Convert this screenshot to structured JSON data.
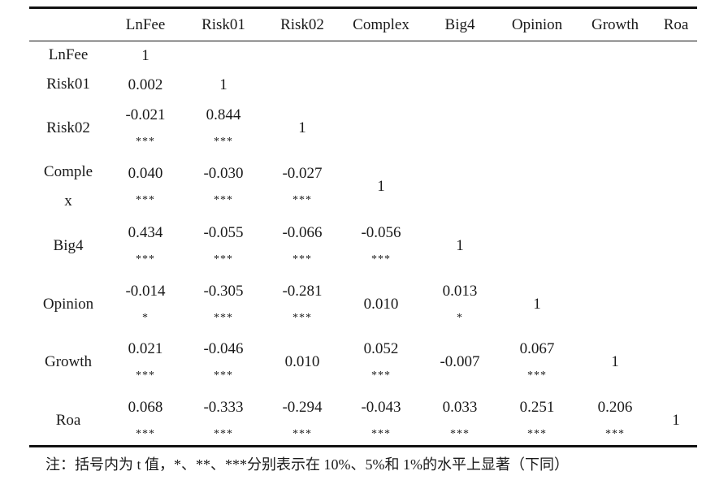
{
  "table": {
    "headers": [
      "",
      "LnFee",
      "Risk01",
      "Risk02",
      "Complex",
      "Big4",
      "Opinion",
      "Growth",
      "Roa"
    ],
    "rows": [
      {
        "label": [
          "LnFee"
        ],
        "cells": [
          {
            "v": "1",
            "s": ""
          },
          null,
          null,
          null,
          null,
          null,
          null,
          null
        ]
      },
      {
        "label": [
          "Risk01"
        ],
        "cells": [
          {
            "v": "0.002",
            "s": ""
          },
          {
            "v": "1",
            "s": ""
          },
          null,
          null,
          null,
          null,
          null,
          null
        ]
      },
      {
        "label": [
          "Risk02"
        ],
        "cells": [
          {
            "v": "-0.021",
            "s": "***"
          },
          {
            "v": "0.844",
            "s": "***"
          },
          {
            "v": "1",
            "s": ""
          },
          null,
          null,
          null,
          null,
          null
        ]
      },
      {
        "label": [
          "Comple",
          "x"
        ],
        "cells": [
          {
            "v": "0.040",
            "s": "***"
          },
          {
            "v": "-0.030",
            "s": "***"
          },
          {
            "v": "-0.027",
            "s": "***"
          },
          {
            "v": "1",
            "s": ""
          },
          null,
          null,
          null,
          null
        ]
      },
      {
        "label": [
          "Big4"
        ],
        "cells": [
          {
            "v": "0.434",
            "s": "***"
          },
          {
            "v": "-0.055",
            "s": "***"
          },
          {
            "v": "-0.066",
            "s": "***"
          },
          {
            "v": "-0.056",
            "s": "***"
          },
          {
            "v": "1",
            "s": ""
          },
          null,
          null,
          null
        ]
      },
      {
        "label": [
          "Opinion"
        ],
        "cells": [
          {
            "v": "-0.014",
            "s": "*"
          },
          {
            "v": "-0.305",
            "s": "***"
          },
          {
            "v": "-0.281",
            "s": "***"
          },
          {
            "v": "0.010",
            "s": ""
          },
          {
            "v": "0.013",
            "s": "*"
          },
          {
            "v": "1",
            "s": ""
          },
          null,
          null
        ]
      },
      {
        "label": [
          "Growth"
        ],
        "cells": [
          {
            "v": "0.021",
            "s": "***"
          },
          {
            "v": "-0.046",
            "s": "***"
          },
          {
            "v": "0.010",
            "s": ""
          },
          {
            "v": "0.052",
            "s": "***"
          },
          {
            "v": "-0.007",
            "s": ""
          },
          {
            "v": "0.067",
            "s": "***"
          },
          {
            "v": "1",
            "s": ""
          },
          null
        ]
      },
      {
        "label": [
          "Roa"
        ],
        "cells": [
          {
            "v": "0.068",
            "s": "***"
          },
          {
            "v": "-0.333",
            "s": "***"
          },
          {
            "v": "-0.294",
            "s": "***"
          },
          {
            "v": "-0.043",
            "s": "***"
          },
          {
            "v": "0.033",
            "s": "***"
          },
          {
            "v": "0.251",
            "s": "***"
          },
          {
            "v": "0.206",
            "s": "***"
          },
          {
            "v": "1",
            "s": ""
          }
        ]
      }
    ]
  },
  "note": "注：括号内为 t 值，*、**、***分别表示在 10%、5%和 1%的水平上显著（下同）"
}
